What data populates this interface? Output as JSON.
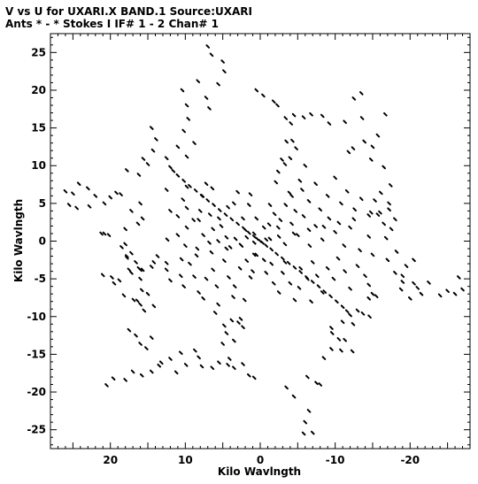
{
  "header": {
    "line1": "V vs U for UXARI.X BAND.1   Source:UXARI",
    "line2": "Ants * - *    Stokes I  IF# 1 - 2  Chan# 1"
  },
  "chart_data": {
    "type": "scatter",
    "title": "V vs U for UXARI.X BAND.1   Source:UXARI",
    "subtitle": "Ants * - *    Stokes I  IF# 1 - 2  Chan# 1",
    "xlabel": "Kilo Wavlngth",
    "ylabel": "Kilo Wavlngth",
    "xlim": [
      28,
      -28
    ],
    "ylim": [
      -27.5,
      27.5
    ],
    "x_ticks": [
      20,
      10,
      0,
      -10,
      -20
    ],
    "y_ticks": [
      25,
      20,
      15,
      10,
      5,
      0,
      -5,
      -10,
      -15,
      -20,
      -25
    ],
    "grid": false,
    "marker": "short dash",
    "points": [
      [
        0,
        0
      ],
      [
        -0.3,
        -0.2
      ],
      [
        0.4,
        0.3
      ],
      [
        0.8,
        0.6
      ],
      [
        -0.8,
        -0.6
      ],
      [
        1.5,
        1.1
      ],
      [
        -1.5,
        -1.1
      ],
      [
        2.2,
        1.7
      ],
      [
        -2.2,
        -1.7
      ],
      [
        3.0,
        2.3
      ],
      [
        -3.0,
        -2.3
      ],
      [
        3.8,
        2.9
      ],
      [
        -3.8,
        -2.9
      ],
      [
        4.6,
        3.5
      ],
      [
        -4.6,
        -3.5
      ],
      [
        5.4,
        4.1
      ],
      [
        -5.4,
        -4.1
      ],
      [
        6.2,
        4.8
      ],
      [
        -6.2,
        -4.8
      ],
      [
        7.0,
        5.4
      ],
      [
        -7.0,
        -5.4
      ],
      [
        7.8,
        6.0
      ],
      [
        -7.8,
        -6.0
      ],
      [
        8.6,
        6.7
      ],
      [
        -8.6,
        -6.7
      ],
      [
        9.4,
        7.3
      ],
      [
        -9.4,
        -7.3
      ],
      [
        10.2,
        8.0
      ],
      [
        -10.2,
        -8.0
      ],
      [
        11.0,
        8.7
      ],
      [
        -11.0,
        -8.7
      ],
      [
        11.6,
        9.3
      ],
      [
        -11.6,
        -9.3
      ],
      [
        12.0,
        9.8
      ],
      [
        -12.0,
        -9.8
      ],
      [
        -0.8,
        0.2
      ],
      [
        0.8,
        -0.2
      ],
      [
        -2.5,
        0.6
      ],
      [
        2.5,
        -0.6
      ],
      [
        -4.5,
        1.0
      ],
      [
        4.5,
        -1.0
      ],
      [
        -6.5,
        1.5
      ],
      [
        6.5,
        -1.5
      ],
      [
        -8.5,
        1.9
      ],
      [
        8.5,
        -1.9
      ],
      [
        -10.5,
        2.4
      ],
      [
        10.5,
        -2.4
      ],
      [
        -12.5,
        2.9
      ],
      [
        12.5,
        -2.9
      ],
      [
        -14.5,
        3.4
      ],
      [
        14.5,
        -3.4
      ],
      [
        -16.0,
        3.8
      ],
      [
        16.0,
        -3.8
      ],
      [
        -17.2,
        4.2
      ],
      [
        17.2,
        -4.2
      ],
      [
        -0.5,
        1.8
      ],
      [
        0.5,
        -1.8
      ],
      [
        -1.3,
        4.8
      ],
      [
        1.3,
        -4.8
      ],
      [
        -2.1,
        7.8
      ],
      [
        2.1,
        -7.8
      ],
      [
        -2.9,
        10.8
      ],
      [
        2.9,
        -10.8
      ],
      [
        -3.5,
        13.2
      ],
      [
        3.5,
        -13.2
      ],
      [
        -4.1,
        15.6
      ],
      [
        4.1,
        -15.6
      ],
      [
        14.5,
        15.0
      ],
      [
        13.9,
        13.5
      ],
      [
        14.3,
        12.0
      ],
      [
        12.5,
        11.0
      ],
      [
        11.0,
        12.5
      ],
      [
        9.8,
        11.2
      ],
      [
        15.6,
        10.9
      ],
      [
        15.0,
        10.2
      ],
      [
        17.8,
        9.4
      ],
      [
        16.2,
        8.8
      ],
      [
        18.6,
        6.2
      ],
      [
        20.0,
        5.8
      ],
      [
        10.2,
        14.6
      ],
      [
        9.6,
        16.2
      ],
      [
        8.8,
        13.0
      ],
      [
        9.8,
        18.0
      ],
      [
        7.2,
        19.0
      ],
      [
        6.8,
        17.6
      ],
      [
        5.6,
        20.8
      ],
      [
        10.4,
        20.0
      ],
      [
        8.3,
        21.2
      ],
      [
        7.0,
        25.8
      ],
      [
        6.5,
        24.7
      ],
      [
        5.0,
        23.8
      ],
      [
        4.8,
        22.5
      ],
      [
        26.0,
        6.6
      ],
      [
        25.0,
        6.3
      ],
      [
        24.2,
        7.6
      ],
      [
        23.0,
        7.0
      ],
      [
        25.5,
        4.8
      ],
      [
        24.5,
        4.4
      ],
      [
        22.0,
        6.0
      ],
      [
        20.8,
        5.0
      ],
      [
        19.2,
        6.4
      ],
      [
        22.8,
        4.6
      ],
      [
        20.8,
        1.0
      ],
      [
        20.2,
        0.8
      ],
      [
        18.0,
        -0.4
      ],
      [
        17.2,
        -1.6
      ],
      [
        16.6,
        -2.8
      ],
      [
        16.2,
        -3.6
      ],
      [
        18.5,
        -0.8
      ],
      [
        17.8,
        -2.2
      ],
      [
        16.0,
        -5.0
      ],
      [
        15.8,
        -6.5
      ],
      [
        15.0,
        -7.0
      ],
      [
        16.4,
        -7.9
      ],
      [
        16.0,
        -8.4
      ],
      [
        15.5,
        -9.2
      ],
      [
        14.2,
        -8.6
      ],
      [
        17.5,
        -11.8
      ],
      [
        16.6,
        -12.5
      ],
      [
        16.0,
        -13.6
      ],
      [
        15.2,
        -14.2
      ],
      [
        14.5,
        -12.8
      ],
      [
        13.2,
        -16.1
      ],
      [
        12.0,
        -15.6
      ],
      [
        10.6,
        -14.8
      ],
      [
        9.9,
        -16.4
      ],
      [
        8.7,
        -14.5
      ],
      [
        20.5,
        -19.1
      ],
      [
        19.6,
        -18.2
      ],
      [
        18.0,
        -18.4
      ],
      [
        17.0,
        -17.3
      ],
      [
        15.8,
        -17.8
      ],
      [
        14.5,
        -17.3
      ],
      [
        13.5,
        -16.5
      ],
      [
        11.2,
        -17.4
      ],
      [
        0.5,
        20.0
      ],
      [
        -0.4,
        19.3
      ],
      [
        -1.8,
        18.5
      ],
      [
        -2.3,
        18.0
      ],
      [
        -3.4,
        16.3
      ],
      [
        -4.5,
        16.7
      ],
      [
        -5.8,
        16.4
      ],
      [
        -6.8,
        16.8
      ],
      [
        -8.3,
        16.6
      ],
      [
        -9.2,
        15.6
      ],
      [
        -4.3,
        13.3
      ],
      [
        -4.8,
        12.3
      ],
      [
        -4.0,
        11.0
      ],
      [
        -3.3,
        10.2
      ],
      [
        -2.4,
        9.2
      ],
      [
        -6.0,
        10.0
      ],
      [
        -5.3,
        8.0
      ],
      [
        -4.2,
        6.0
      ],
      [
        -13.5,
        19.6
      ],
      [
        -12.5,
        18.9
      ],
      [
        -16.7,
        16.8
      ],
      [
        -13.6,
        16.3
      ],
      [
        -11.3,
        15.8
      ],
      [
        -15.7,
        14.0
      ],
      [
        -13.9,
        13.2
      ],
      [
        -12.4,
        12.3
      ],
      [
        -11.8,
        11.8
      ],
      [
        -15.0,
        12.5
      ],
      [
        -16.5,
        9.8
      ],
      [
        -14.8,
        10.8
      ],
      [
        -17.4,
        7.4
      ],
      [
        -17.2,
        5.0
      ],
      [
        -16.1,
        6.4
      ],
      [
        -18.0,
        2.9
      ],
      [
        -17.5,
        1.6
      ],
      [
        -16.8,
        0.4
      ],
      [
        -18.2,
        -1.4
      ],
      [
        -17.0,
        -2.5
      ],
      [
        -19.5,
        -3.3
      ],
      [
        -18.0,
        -4.2
      ],
      [
        -19.0,
        -5.4
      ],
      [
        -18.8,
        -6.4
      ],
      [
        -19.0,
        -4.6
      ],
      [
        -20.5,
        -5.6
      ],
      [
        -21.0,
        -6.2
      ],
      [
        -21.5,
        -7.0
      ],
      [
        -22.5,
        -5.5
      ],
      [
        -24.0,
        -7.2
      ],
      [
        -25.0,
        -6.6
      ],
      [
        -26.0,
        -7.0
      ],
      [
        -27.0,
        -6.4
      ],
      [
        -26.5,
        -4.8
      ],
      [
        -20.0,
        -7.6
      ],
      [
        -20.5,
        -2.5
      ],
      [
        -15.5,
        -7.3
      ],
      [
        -14.5,
        -5.8
      ],
      [
        -15.0,
        -7.0
      ],
      [
        -14.5,
        -7.6
      ],
      [
        -13.7,
        -9.6
      ],
      [
        -13.0,
        -9.2
      ],
      [
        -14.6,
        -10.0
      ],
      [
        -12.4,
        -11.0
      ],
      [
        -11.0,
        -10.7
      ],
      [
        -10.5,
        -13.0
      ],
      [
        -9.6,
        -12.2
      ],
      [
        -9.5,
        -11.5
      ],
      [
        -12.3,
        -14.6
      ],
      [
        -11.3,
        -13.1
      ],
      [
        -10.8,
        -14.5
      ],
      [
        -9.5,
        -14.3
      ],
      [
        -8.5,
        -15.5
      ],
      [
        -7.5,
        -18.8
      ],
      [
        -6.3,
        -18.0
      ],
      [
        -8.0,
        -19.0
      ],
      [
        -6.5,
        -22.5
      ],
      [
        -6.0,
        -24.0
      ],
      [
        -5.8,
        -25.5
      ],
      [
        -7.0,
        -25.4
      ],
      [
        -4.5,
        -20.6
      ],
      [
        -3.5,
        -19.4
      ],
      [
        0.8,
        -18.1
      ],
      [
        1.5,
        -17.8
      ],
      [
        2.3,
        -16.3
      ],
      [
        3.5,
        -16.8
      ],
      [
        4.3,
        -16.4
      ],
      [
        5.5,
        -16.1
      ],
      [
        6.4,
        -16.8
      ],
      [
        7.8,
        -16.6
      ],
      [
        8.2,
        -15.4
      ],
      [
        5.0,
        -13.6
      ],
      [
        4.5,
        -12.2
      ],
      [
        4.8,
        -11.2
      ],
      [
        3.8,
        -10.5
      ],
      [
        2.6,
        -10.3
      ],
      [
        2.3,
        -11.4
      ],
      [
        6.0,
        -9.5
      ],
      [
        5.6,
        -8.4
      ],
      [
        17.8,
        -2.0
      ],
      [
        17.5,
        -3.8
      ],
      [
        18.8,
        -5.2
      ],
      [
        19.8,
        -4.8
      ],
      [
        15.7,
        -3.8
      ],
      [
        14.2,
        -2.8
      ],
      [
        21.0,
        -4.5
      ],
      [
        19.5,
        -5.6
      ],
      [
        18.2,
        -7.2
      ],
      [
        16.9,
        -7.8
      ],
      [
        21.2,
        1.0
      ],
      [
        18.0,
        1.6
      ],
      [
        16.3,
        2.3
      ],
      [
        15.7,
        3.0
      ],
      [
        17.2,
        4.0
      ],
      [
        16.0,
        5.0
      ],
      [
        12.5,
        6.8
      ],
      [
        12.0,
        4.0
      ],
      [
        11.0,
        3.3
      ],
      [
        10.3,
        5.5
      ],
      [
        9.8,
        4.4
      ],
      [
        8.2,
        2.8
      ],
      [
        8.0,
        4.0
      ],
      [
        9.8,
        7.2
      ],
      [
        8.9,
        2.8
      ],
      [
        7.7,
        6.0
      ],
      [
        7.2,
        7.6
      ],
      [
        6.4,
        7.0
      ],
      [
        6.7,
        3.5
      ],
      [
        5.5,
        3.0
      ],
      [
        5.2,
        2.0
      ],
      [
        4.3,
        4.5
      ],
      [
        3.5,
        5.0
      ],
      [
        3.0,
        6.5
      ],
      [
        2.3,
        3.0
      ],
      [
        2.0,
        1.5
      ],
      [
        1.5,
        4.8
      ],
      [
        1.3,
        6.2
      ],
      [
        0.5,
        3.0
      ],
      [
        0.8,
        1.0
      ],
      [
        12.4,
        0.2
      ],
      [
        11.0,
        0.8
      ],
      [
        10.0,
        -0.6
      ],
      [
        9.8,
        1.8
      ],
      [
        8.4,
        -1.0
      ],
      [
        7.6,
        0.8
      ],
      [
        6.8,
        -0.2
      ],
      [
        6.3,
        1.6
      ],
      [
        5.6,
        0.0
      ],
      [
        4.5,
        0.5
      ],
      [
        4.0,
        -0.8
      ],
      [
        3.3,
        0.3
      ],
      [
        2.6,
        -0.5
      ],
      [
        1.8,
        0.5
      ],
      [
        13.7,
        -2.0
      ],
      [
        12.5,
        -3.8
      ],
      [
        12.0,
        -5.2
      ],
      [
        10.6,
        -4.6
      ],
      [
        10.2,
        -6.0
      ],
      [
        9.4,
        -3.0
      ],
      [
        8.8,
        -4.7
      ],
      [
        8.2,
        -6.8
      ],
      [
        7.6,
        -7.6
      ],
      [
        7.2,
        -5.0
      ],
      [
        6.3,
        -3.8
      ],
      [
        5.8,
        -6.0
      ],
      [
        4.8,
        -2.6
      ],
      [
        4.2,
        -4.8
      ],
      [
        3.6,
        -7.4
      ],
      [
        3.4,
        -6.0
      ],
      [
        2.7,
        -3.6
      ],
      [
        1.8,
        -2.6
      ],
      [
        1.0,
        -4.0
      ],
      [
        0.8,
        -1.8
      ],
      [
        -0.5,
        -2.5
      ],
      [
        -0.8,
        -4.2
      ],
      [
        -1.5,
        -3.0
      ],
      [
        -1.8,
        -5.6
      ],
      [
        -2.5,
        -6.8
      ],
      [
        -3.0,
        -4.2
      ],
      [
        -3.3,
        -2.8
      ],
      [
        -4.0,
        -5.6
      ],
      [
        -4.6,
        -7.8
      ],
      [
        -5.2,
        -6.2
      ],
      [
        -5.4,
        -3.6
      ],
      [
        -6.3,
        -5.0
      ],
      [
        -6.8,
        -8.0
      ],
      [
        -7.0,
        -2.8
      ],
      [
        -7.6,
        -4.6
      ],
      [
        -8.3,
        -6.8
      ],
      [
        -9.0,
        -3.6
      ],
      [
        -9.8,
        -5.0
      ],
      [
        -10.4,
        -2.3
      ],
      [
        -11.3,
        -4.0
      ],
      [
        -12.0,
        -6.3
      ],
      [
        -13.0,
        -3.3
      ],
      [
        -14.0,
        -4.6
      ],
      [
        -1.3,
        0.3
      ],
      [
        -2.4,
        1.8
      ],
      [
        -3.3,
        -0.4
      ],
      [
        -4.2,
        2.3
      ],
      [
        -5.0,
        0.8
      ],
      [
        -5.8,
        3.3
      ],
      [
        -6.6,
        -0.6
      ],
      [
        -7.4,
        2.0
      ],
      [
        -8.3,
        0.2
      ],
      [
        -9.2,
        3.0
      ],
      [
        -10.0,
        1.2
      ],
      [
        -11.2,
        -0.6
      ],
      [
        -12.0,
        1.8
      ],
      [
        -13.3,
        -1.2
      ],
      [
        -14.5,
        0.6
      ],
      [
        -15.0,
        -1.8
      ],
      [
        -1.2,
        2.2
      ],
      [
        -1.9,
        3.6
      ],
      [
        -2.7,
        2.8
      ],
      [
        -3.4,
        4.8
      ],
      [
        -3.9,
        6.4
      ],
      [
        -4.7,
        4.0
      ],
      [
        -5.6,
        6.8
      ],
      [
        -6.5,
        5.3
      ],
      [
        -7.4,
        7.6
      ],
      [
        -8.0,
        4.2
      ],
      [
        -9.0,
        6.0
      ],
      [
        -10.0,
        8.4
      ],
      [
        -10.8,
        5.0
      ],
      [
        -11.6,
        6.6
      ],
      [
        -12.6,
        4.2
      ],
      [
        -13.5,
        5.6
      ],
      [
        -14.8,
        3.8
      ],
      [
        -15.3,
        5.4
      ],
      [
        -15.7,
        3.5
      ],
      [
        -16.5,
        2.3
      ]
    ]
  }
}
